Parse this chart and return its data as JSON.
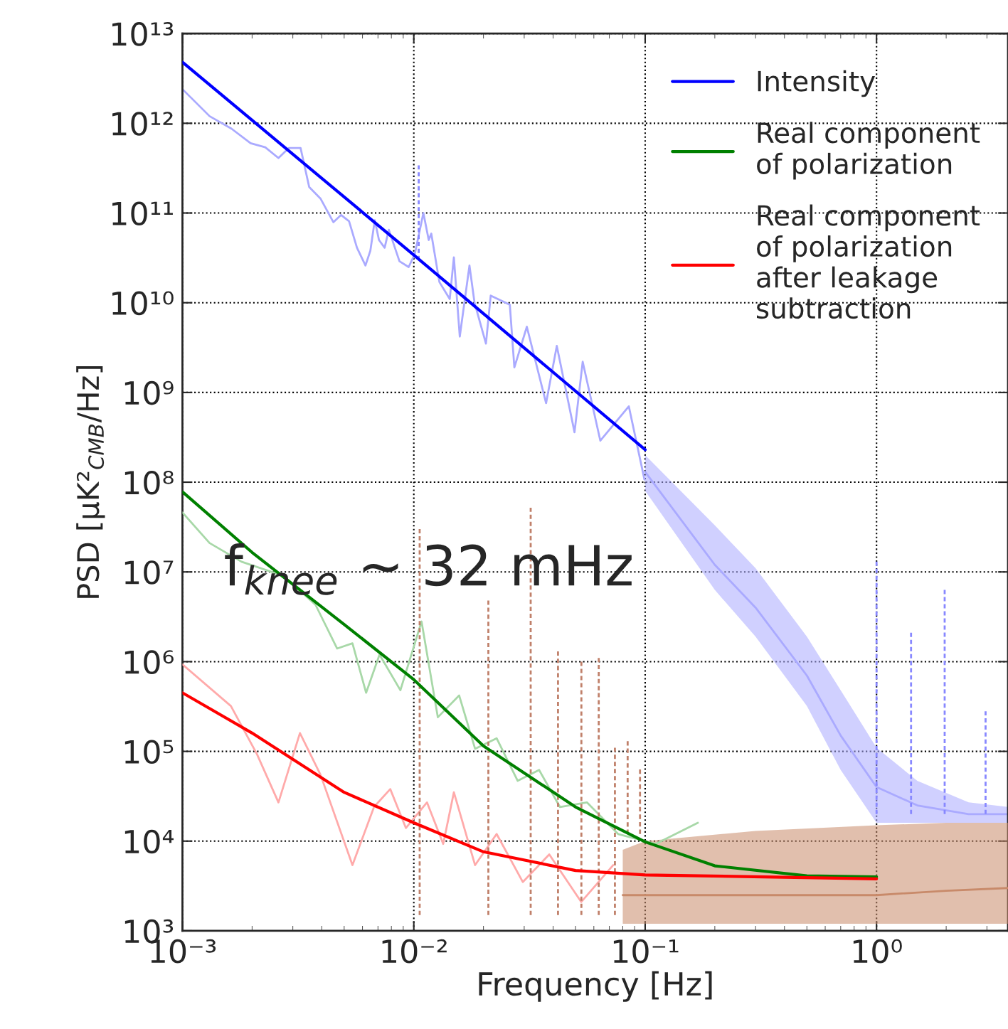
{
  "chart_data": {
    "type": "line",
    "xlabel": "Frequency [Hz]",
    "ylabel": "PSD [μK²$_{CMB}$/Hz]",
    "log": "xy",
    "grid": true,
    "legend": "top right",
    "xlim": [
      0.001,
      3.7
    ],
    "ylim": [
      1000,
      10000000000000.0
    ],
    "xticks": [
      {
        "value": 0.001,
        "label": "10⁻³"
      },
      {
        "value": 0.01,
        "label": "10⁻²"
      },
      {
        "value": 0.1,
        "label": "10⁻¹"
      },
      {
        "value": 1,
        "label": "10⁰"
      }
    ],
    "yticks": [
      {
        "value": 1000,
        "label": "10³"
      },
      {
        "value": 10000,
        "label": "10⁴"
      },
      {
        "value": 100000,
        "label": "10⁵"
      },
      {
        "value": 1000000,
        "label": "10⁶"
      },
      {
        "value": 10000000,
        "label": "10⁷"
      },
      {
        "value": 100000000,
        "label": "10⁸"
      },
      {
        "value": 1000000000,
        "label": "10⁹"
      },
      {
        "value": 10000000000,
        "label": "10¹⁰"
      },
      {
        "value": 100000000000,
        "label": "10¹¹"
      },
      {
        "value": 1000000000000,
        "label": "10¹²"
      },
      {
        "value": 10000000000000,
        "label": "10¹³"
      }
    ],
    "annotations": [
      "f$_{knee}$ ~ 32 mHz"
    ],
    "series": [
      {
        "color": "#aaaaff",
        "x": [
          0.1,
          0.2,
          0.3,
          0.5,
          0.7,
          1.0,
          1.5,
          2.5,
          3.7
        ],
        "values": [
          130000000.0,
          12000000.0,
          4000000.0,
          700000.0,
          150000.0,
          40000.0,
          25000.0,
          20000.0,
          20000.0
        ],
        "lower": [
          80000000.0,
          6300000.0,
          1900000.0,
          320000.0,
          62000.0,
          16000.0,
          16000.0,
          16000.0,
          16000.0
        ],
        "upper": [
          200000000.0,
          33000000.0,
          11000000.0,
          1900000.0,
          480000.0,
          110000.0,
          47000.0,
          27000.0,
          24000.0
        ]
      },
      {
        "color": "#aaaaff",
        "x": [
          0.001,
          0.00131,
          0.00163,
          0.00197,
          0.00228,
          0.0026,
          0.00288,
          0.00324,
          0.00353,
          0.00395,
          0.00449,
          0.00485,
          0.00525,
          0.00568,
          0.00618,
          0.00649,
          0.00678,
          0.00707,
          0.00748,
          0.0078,
          0.00867,
          0.0095,
          0.0101,
          0.011,
          0.0116,
          0.0119,
          0.0129,
          0.0143,
          0.0149,
          0.0158,
          0.0174,
          0.0183,
          0.0205,
          0.0215,
          0.026,
          0.0272,
          0.0308,
          0.0373,
          0.0415,
          0.0495,
          0.0537,
          0.064,
          0.085,
          0.0993
        ],
        "values": [
          2400000000000.0,
          1200000000000.0,
          870000000000.0,
          600000000000.0,
          540000000000.0,
          410000000000.0,
          530000000000.0,
          530000000000.0,
          195000000000.0,
          145000000000.0,
          79000000000.0,
          95000000000.0,
          81000000000.0,
          41000000000.0,
          26000000000.0,
          38000000000.0,
          83000000000.0,
          50000000000.0,
          41000000000.0,
          65000000000.0,
          29000000000.0,
          25000000000.0,
          35000000000.0,
          100000000000.0,
          50000000000.0,
          59000000000.0,
          17000000000.0,
          11000000000.0,
          32000000000.0,
          4200000000.0,
          26000000000.0,
          10000000000.0,
          3500000000.0,
          12000000000.0,
          9500000000.0,
          1900000000.0,
          5400000000.0,
          760000000.0,
          3300000000.0,
          360000000.0,
          2200000000.0,
          290000000.0,
          700000000.0,
          107000000.0
        ]
      },
      {
        "color": "#8888ff",
        "line_style": "dashed",
        "x": [
          0.0105,
          0.0105
        ],
        "values": [
          30000000000.0,
          340000000000.0
        ]
      },
      {
        "color": "#8888ff",
        "line_style": "dashed",
        "x": [
          1.0,
          1.0
        ],
        "values": [
          20000.0,
          13000000.0
        ]
      },
      {
        "color": "#8888ff",
        "line_style": "dashed",
        "x": [
          1.41,
          1.41
        ],
        "values": [
          20000.0,
          2100000.0
        ]
      },
      {
        "color": "#8888ff",
        "line_style": "dashed",
        "x": [
          1.97,
          1.97
        ],
        "values": [
          20000.0,
          6300000.0
        ]
      },
      {
        "color": "#8888ff",
        "line_style": "dashed",
        "x": [
          2.96,
          2.96
        ],
        "values": [
          20000.0,
          280000.0
        ]
      },
      {
        "color": "#c88a6a",
        "x": [
          0.08,
          0.1,
          0.3,
          1.0,
          2.0,
          3.7
        ],
        "values": [
          2500.0,
          2500.0,
          2500.0,
          2500.0,
          2800.0,
          3000.0
        ],
        "lower": [
          1200.0,
          1200.0,
          1200.0,
          1200.0,
          1200.0,
          1200.0
        ],
        "upper": [
          8000.0,
          10000.0,
          13000.0,
          15000.0,
          16000.0,
          16000.0
        ]
      },
      {
        "color": "#a8d8a8",
        "x": [
          0.001,
          0.00131,
          0.0018,
          0.00274,
          0.00376,
          0.00466,
          0.00543,
          0.00622,
          0.00711,
          0.00875,
          0.0108,
          0.0127,
          0.0157,
          0.0184,
          0.0228,
          0.0281,
          0.0348,
          0.0428,
          0.056,
          0.0764,
          0.111,
          0.169
        ],
        "values": [
          46000000.0,
          21000000.0,
          13000000.0,
          9000000.0,
          4300000.0,
          1400000.0,
          1600000.0,
          450000.0,
          1200000.0,
          480000.0,
          2800000.0,
          240000.0,
          420000.0,
          107000.0,
          140000.0,
          47000.0,
          62000.0,
          24000.0,
          27000.0,
          12000.0,
          9300.0,
          16000.0
        ]
      },
      {
        "color": "#ffaaaa",
        "x": [
          0.001,
          0.00162,
          0.0021,
          0.0026,
          0.00322,
          0.00395,
          0.00543,
          0.00673,
          0.00791,
          0.00924,
          0.0114,
          0.0134,
          0.0149,
          0.0184,
          0.0228,
          0.0296,
          0.0385,
          0.0529,
          0.0727
        ],
        "values": [
          930000.0,
          320000.0,
          93000.0,
          27000.0,
          160000.0,
          55000.0,
          5400.0,
          24000.0,
          38000.0,
          14000.0,
          27000.0,
          9300.0,
          35000.0,
          5400.0,
          12000.0,
          3500.0,
          7100.0,
          2100.0,
          5400.0
        ]
      },
      {
        "color": "#c0806a",
        "line_style": "dashed",
        "x": [
          0.0106,
          0.0106
        ],
        "values": [
          1500.0,
          30000000.0
        ]
      },
      {
        "color": "#c0806a",
        "line_style": "dashed",
        "x": [
          0.021,
          0.021
        ],
        "values": [
          1500.0,
          4800000.0
        ]
      },
      {
        "color": "#c0806a",
        "line_style": "dashed",
        "x": [
          0.032,
          0.032
        ],
        "values": [
          1500.0,
          52000000.0
        ]
      },
      {
        "color": "#c0806a",
        "line_style": "dashed",
        "x": [
          0.042,
          0.042
        ],
        "values": [
          1500.0,
          1300000.0
        ]
      },
      {
        "color": "#c0806a",
        "line_style": "dashed",
        "x": [
          0.053,
          0.053
        ],
        "values": [
          1500.0,
          1000000.0
        ]
      },
      {
        "color": "#c0806a",
        "line_style": "dashed",
        "x": [
          0.063,
          0.063
        ],
        "values": [
          1500.0,
          1100000.0
        ]
      },
      {
        "color": "#c0806a",
        "line_style": "dashed",
        "x": [
          0.074,
          0.074
        ],
        "values": [
          1500.0,
          110000.0
        ]
      },
      {
        "color": "#c0806a",
        "line_style": "dashed",
        "x": [
          0.084,
          0.084
        ],
        "values": [
          12000.0,
          130000.0
        ]
      },
      {
        "color": "#c0806a",
        "line_style": "dashed",
        "x": [
          0.095,
          0.095
        ],
        "values": [
          12000.0,
          63000.0
        ]
      },
      {
        "name": "Intensity",
        "color": "#0000ff",
        "x": [
          0.001,
          0.01,
          0.1
        ],
        "values": [
          4800000000000.0,
          34000000000.0,
          230000000.0
        ]
      },
      {
        "name": "Real component\nof polarization",
        "color": "#008000",
        "x": [
          0.001,
          0.002,
          0.005,
          0.01,
          0.02,
          0.05,
          0.1,
          0.2,
          0.5,
          1.0
        ],
        "values": [
          78000000.0,
          16500000.0,
          2600000.0,
          630000.0,
          115000.0,
          24000.0,
          9800.0,
          5300.0,
          4100.0,
          4000.0
        ]
      },
      {
        "name": "Real component\nof polarization\nafter leakage\nsubtraction",
        "color": "#ff0000",
        "x": [
          0.001,
          0.002,
          0.005,
          0.01,
          0.02,
          0.05,
          0.1,
          1.0
        ],
        "values": [
          450000.0,
          160000.0,
          35000.0,
          16000.0,
          7600.0,
          4700.0,
          4200.0,
          3800.0
        ]
      }
    ]
  }
}
